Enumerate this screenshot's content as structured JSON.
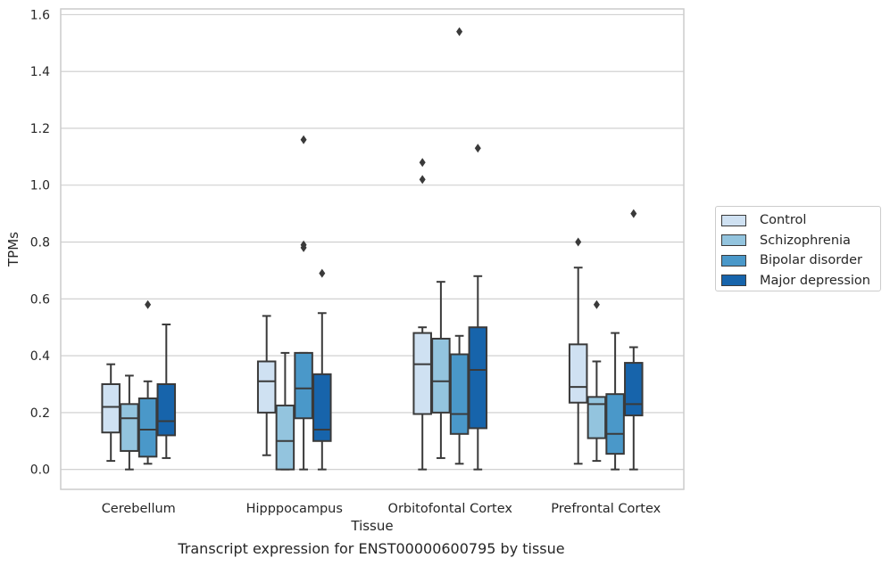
{
  "caption": "Transcript expression for ENST00000600795 by tissue",
  "colors": {
    "Control": "#cfe1f2",
    "Schizophrenia": "#93c4de",
    "Bipolar disorder": "#4a98c9",
    "Major depression": "#1764ab",
    "grid": "#cccccc",
    "axis": "#cccccc",
    "line": "#3a3a3a"
  },
  "legend": {
    "items": [
      "Control",
      "Schizophrenia",
      "Bipolar disorder",
      "Major depression"
    ],
    "placement": "outside-right"
  },
  "chart_data": {
    "type": "box",
    "xlabel": "Tissue",
    "ylabel": "TPMs",
    "ylim": [
      -0.07,
      1.62
    ],
    "yticks": [
      0.0,
      0.2,
      0.4,
      0.6,
      0.8,
      1.0,
      1.2,
      1.4,
      1.6
    ],
    "ytick_labels": [
      "0.0",
      "0.2",
      "0.4",
      "0.6",
      "0.8",
      "1.0",
      "1.2",
      "1.4",
      "1.6"
    ],
    "grid": "horizontal",
    "categories": [
      "Cerebellum",
      "Hipppocampus",
      "Orbitofontal Cortex",
      "Prefrontal Cortex"
    ],
    "series": [
      {
        "name": "Control",
        "boxes": [
          {
            "whislo": 0.03,
            "q1": 0.13,
            "med": 0.22,
            "q3": 0.3,
            "whishi": 0.37,
            "fliers": []
          },
          {
            "whislo": 0.05,
            "q1": 0.2,
            "med": 0.31,
            "q3": 0.38,
            "whishi": 0.54,
            "fliers": []
          },
          {
            "whislo": 0.0,
            "q1": 0.195,
            "med": 0.37,
            "q3": 0.48,
            "whishi": 0.5,
            "fliers": [
              1.02,
              1.08
            ]
          },
          {
            "whislo": 0.02,
            "q1": 0.235,
            "med": 0.29,
            "q3": 0.44,
            "whishi": 0.71,
            "fliers": [
              0.8
            ]
          }
        ]
      },
      {
        "name": "Schizophrenia",
        "boxes": [
          {
            "whislo": 0.0,
            "q1": 0.065,
            "med": 0.18,
            "q3": 0.23,
            "whishi": 0.33,
            "fliers": []
          },
          {
            "whislo": 0.0,
            "q1": 0.0,
            "med": 0.1,
            "q3": 0.225,
            "whishi": 0.41,
            "fliers": []
          },
          {
            "whislo": 0.04,
            "q1": 0.2,
            "med": 0.31,
            "q3": 0.46,
            "whishi": 0.66,
            "fliers": []
          },
          {
            "whislo": 0.03,
            "q1": 0.11,
            "med": 0.23,
            "q3": 0.255,
            "whishi": 0.38,
            "fliers": [
              0.58
            ]
          }
        ]
      },
      {
        "name": "Bipolar disorder",
        "boxes": [
          {
            "whislo": 0.02,
            "q1": 0.045,
            "med": 0.14,
            "q3": 0.25,
            "whishi": 0.31,
            "fliers": [
              0.58
            ]
          },
          {
            "whislo": 0.0,
            "q1": 0.18,
            "med": 0.285,
            "q3": 0.41,
            "whishi": 0.41,
            "fliers": [
              0.78,
              0.79,
              1.16
            ]
          },
          {
            "whislo": 0.02,
            "q1": 0.125,
            "med": 0.195,
            "q3": 0.405,
            "whishi": 0.47,
            "fliers": [
              1.54
            ]
          },
          {
            "whislo": 0.0,
            "q1": 0.055,
            "med": 0.125,
            "q3": 0.265,
            "whishi": 0.48,
            "fliers": []
          }
        ]
      },
      {
        "name": "Major depression",
        "boxes": [
          {
            "whislo": 0.04,
            "q1": 0.12,
            "med": 0.17,
            "q3": 0.3,
            "whishi": 0.51,
            "fliers": []
          },
          {
            "whislo": 0.0,
            "q1": 0.1,
            "med": 0.14,
            "q3": 0.335,
            "whishi": 0.55,
            "fliers": [
              0.69
            ]
          },
          {
            "whislo": 0.0,
            "q1": 0.145,
            "med": 0.35,
            "q3": 0.5,
            "whishi": 0.68,
            "fliers": [
              1.13
            ]
          },
          {
            "whislo": 0.0,
            "q1": 0.19,
            "med": 0.23,
            "q3": 0.375,
            "whishi": 0.43,
            "fliers": [
              0.9
            ]
          }
        ]
      }
    ]
  }
}
